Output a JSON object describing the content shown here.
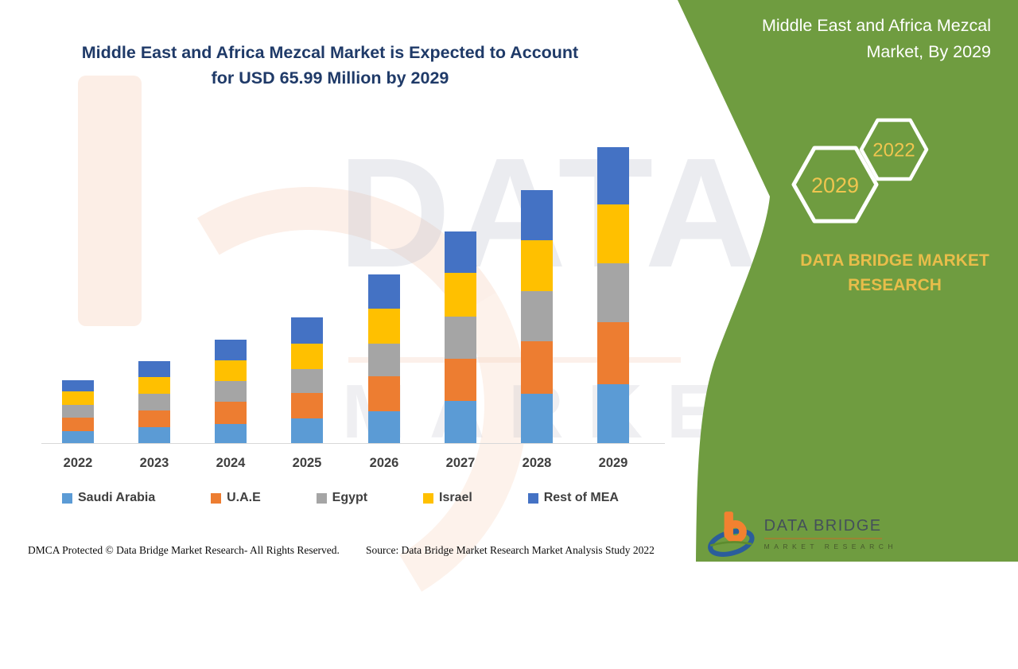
{
  "header": {
    "title_line1": "Middle East and Africa Mezcal Market is Expected to Account",
    "title_line2": "for USD 65.99 Million by 2029"
  },
  "right_panel": {
    "title_line1": "Middle East and Africa Mezcal",
    "title_line2": "Market, By 2029",
    "hexagons": [
      {
        "label": "2029"
      },
      {
        "label": "2022"
      }
    ],
    "brand_line1": "DATA BRIDGE MARKET",
    "brand_line2": "RESEARCH",
    "logo": {
      "name": "DATA BRIDGE",
      "sub": "MARKET RESEARCH"
    }
  },
  "watermark": {
    "brand": "DATA BRIDGE",
    "sub": "MARKET RESEARCH"
  },
  "footer": {
    "dmca": "DMCA Protected © Data Bridge Market Research- All Rights Reserved.",
    "source": "Source: Data Bridge Market Research Market Analysis Study 2022"
  },
  "colors": {
    "panel_green": "#6f9c40",
    "title_navy": "#1f3a68",
    "gold": "#e8bd4a",
    "hexagon_label_gold": "#efc54f",
    "axis_text": "#3f3f3f"
  },
  "chart_data": {
    "type": "bar",
    "stacked": true,
    "title": "Middle East and Africa Mezcal Market is Expected to Account for USD 65.99 Million by 2029",
    "unit": "USD Million",
    "categories": [
      "2022",
      "2023",
      "2024",
      "2025",
      "2026",
      "2027",
      "2028",
      "2029"
    ],
    "series": [
      {
        "name": "Saudi Arabia",
        "color": "#5B9BD5",
        "values": [
          2.9,
          3.7,
          4.4,
          5.6,
          7.3,
          9.6,
          11.2,
          13.2
        ]
      },
      {
        "name": "U.A.E",
        "color": "#ED7D31",
        "values": [
          3.0,
          3.7,
          4.9,
          5.8,
          7.7,
          9.3,
          11.6,
          13.9
        ]
      },
      {
        "name": "Egypt",
        "color": "#A5A5A5",
        "values": [
          2.7,
          3.8,
          4.6,
          5.2,
          7.3,
          9.5,
          11.2,
          13.1
        ]
      },
      {
        "name": "Israel",
        "color": "#FFC000",
        "values": [
          3.0,
          3.7,
          4.7,
          5.7,
          7.8,
          9.6,
          11.4,
          13.0
        ]
      },
      {
        "name": "Rest of MEA",
        "color": "#4472C4",
        "values": [
          2.6,
          3.6,
          4.6,
          5.9,
          7.6,
          9.2,
          11.0,
          12.8
        ]
      }
    ],
    "totals": [
      14.2,
      18.5,
      23.2,
      28.2,
      37.7,
      47.2,
      56.4,
      65.99
    ],
    "xlabel": "",
    "ylabel": "",
    "y_axis_visible": false,
    "grid": false,
    "legend_position": "bottom"
  }
}
